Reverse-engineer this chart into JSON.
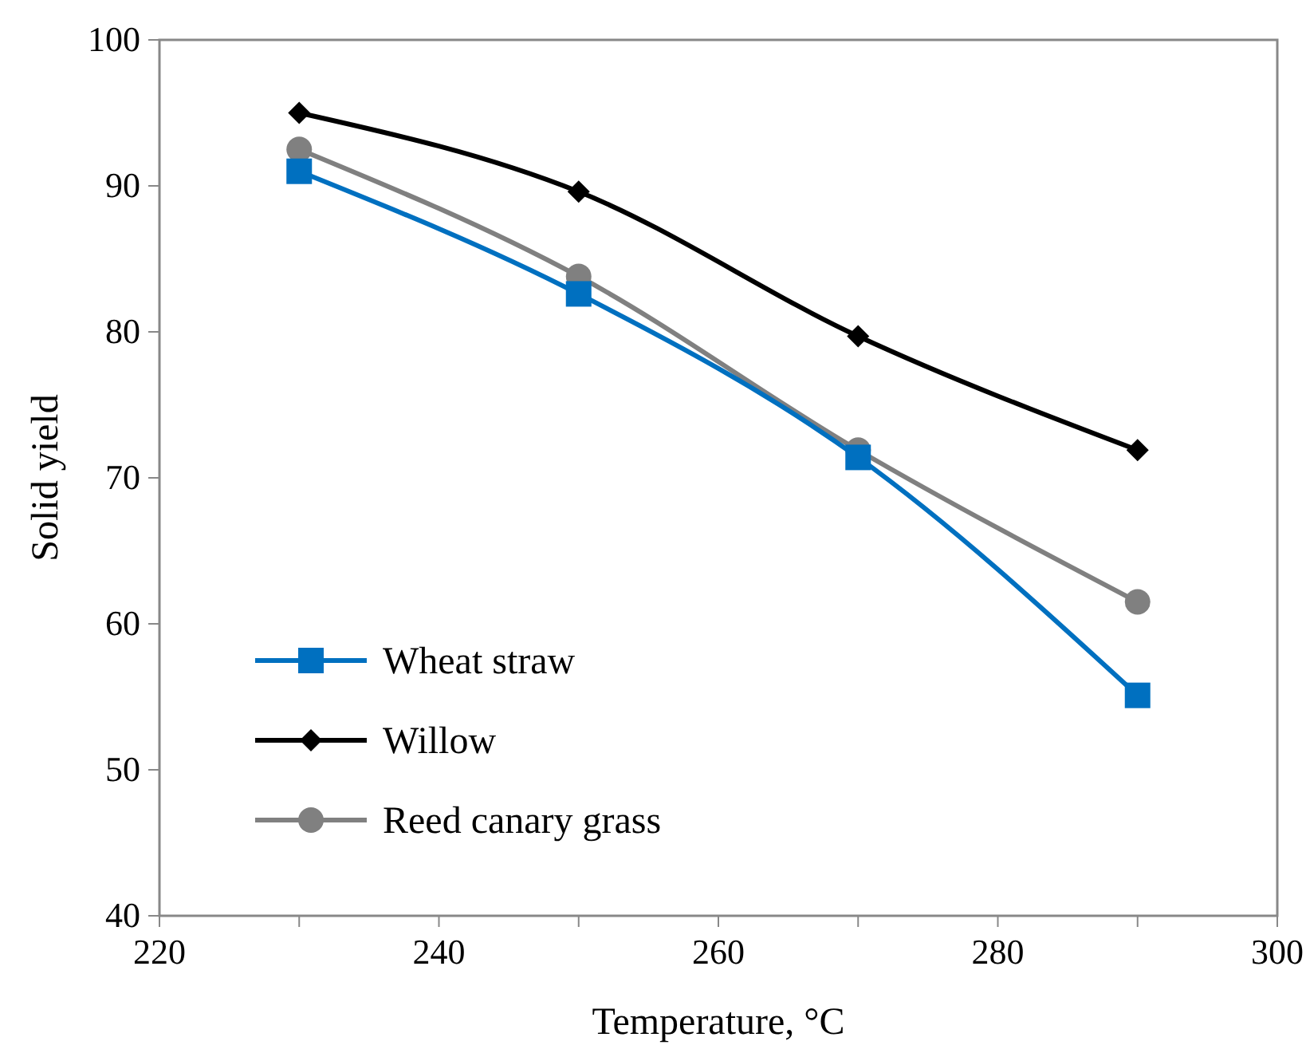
{
  "chart_data": {
    "type": "line",
    "xlabel": "Temperature, °C",
    "ylabel": "Solid yield",
    "x": [
      230,
      250,
      270,
      290
    ],
    "xlim": [
      220,
      300
    ],
    "xticks": [
      220,
      {
        "value": 230,
        "label": null
      },
      240,
      {
        "value": 250,
        "label": null
      },
      260,
      {
        "value": 270,
        "label": null
      },
      280,
      {
        "value": 290,
        "label": null
      },
      300
    ],
    "ylim": [
      40,
      100
    ],
    "yticks": [
      40,
      50,
      60,
      70,
      80,
      90,
      100
    ],
    "grid": false,
    "legend": "bottom left",
    "line_style": "solid",
    "series": [
      {
        "name": "Wheat straw",
        "color": "#0070c0",
        "marker": "square",
        "values": [
          91,
          82.6,
          71.4,
          55.1
        ]
      },
      {
        "name": "Willow",
        "color": "#000000",
        "marker": "diamond",
        "values": [
          95,
          89.6,
          79.7,
          71.9
        ]
      },
      {
        "name": "Reed canary grass",
        "color": "#808080",
        "marker": "circle",
        "values": [
          92.5,
          83.8,
          71.9,
          61.5
        ]
      }
    ]
  }
}
